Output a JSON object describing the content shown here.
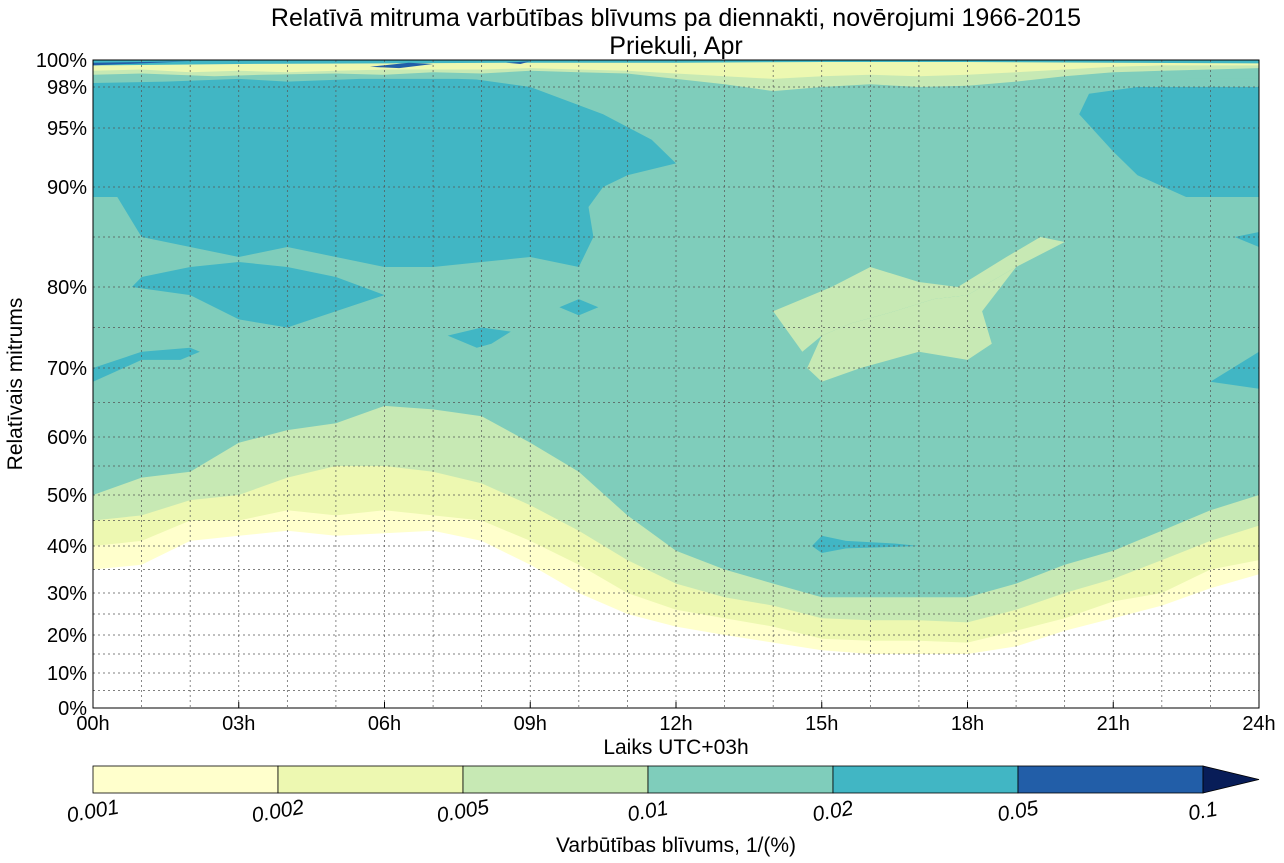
{
  "chart_data": {
    "type": "heatmap",
    "title": "Relatīvā mitruma varbūtības blīvums pa diennakti, novērojumi 1966-2015",
    "subtitle": "Priekuli, Apr",
    "xlabel": "Laiks UTC+03h",
    "ylabel": "Relatīvais mitrums",
    "x_ticks": [
      "00h",
      "03h",
      "06h",
      "09h",
      "12h",
      "15h",
      "18h",
      "21h",
      "24h"
    ],
    "x_range_hours": [
      0,
      24
    ],
    "y_ticks": [
      "0%",
      "10%",
      "20%",
      "30%",
      "40%",
      "50%",
      "60%",
      "70%",
      "80%",
      "90%",
      "95%",
      "98%",
      "100%"
    ],
    "y_range": [
      0,
      100
    ],
    "grid": true,
    "colorbar": {
      "label": "Varbūtības blīvums, 1/(%)",
      "levels": [
        "0.001",
        "0.002",
        "0.005",
        "0.01",
        "0.02",
        "0.05",
        "0.1"
      ],
      "colors": [
        "#ffffcc",
        "#edf8b1",
        "#c7e9b4",
        "#7fcdbb",
        "#41b6c4",
        "#225ea8",
        "#081d58"
      ],
      "extend": "max",
      "placement": "bottom"
    },
    "contours": [
      {
        "level": "0.001",
        "color": "#ffffcc",
        "lower_boundary": [
          [
            0,
            35
          ],
          [
            1,
            36
          ],
          [
            2,
            41
          ],
          [
            3,
            42
          ],
          [
            4,
            43
          ],
          [
            5,
            42
          ],
          [
            6,
            42.5
          ],
          [
            7,
            43
          ],
          [
            8,
            41
          ],
          [
            9,
            36
          ],
          [
            10,
            30
          ],
          [
            11,
            25
          ],
          [
            12,
            22
          ],
          [
            13,
            20
          ],
          [
            14,
            18
          ],
          [
            15,
            16
          ],
          [
            16,
            15
          ],
          [
            17,
            15
          ],
          [
            18,
            15
          ],
          [
            19,
            17
          ],
          [
            20,
            21
          ],
          [
            21,
            24
          ],
          [
            22,
            27
          ],
          [
            23,
            31
          ],
          [
            24,
            34
          ]
        ],
        "upper_boundary": [
          [
            0,
            40
          ],
          [
            1,
            41
          ],
          [
            2,
            45
          ],
          [
            3,
            45
          ],
          [
            4,
            47
          ],
          [
            5,
            46
          ],
          [
            6,
            47
          ],
          [
            7,
            46
          ],
          [
            8,
            45
          ],
          [
            9,
            41
          ],
          [
            10,
            36
          ],
          [
            11,
            30
          ],
          [
            12,
            26
          ],
          [
            13,
            24
          ],
          [
            14,
            22
          ],
          [
            15,
            19
          ],
          [
            16,
            18.5
          ],
          [
            17,
            18.5
          ],
          [
            18,
            18
          ],
          [
            19,
            21
          ],
          [
            20,
            24
          ],
          [
            21,
            28
          ],
          [
            22,
            30
          ],
          [
            23,
            35
          ],
          [
            24,
            37
          ]
        ]
      },
      {
        "level": "0.002",
        "color": "#edf8b1",
        "upper_boundary": [
          [
            0,
            45
          ],
          [
            1,
            46
          ],
          [
            2,
            49
          ],
          [
            3,
            50
          ],
          [
            4,
            53
          ],
          [
            5,
            55
          ],
          [
            6,
            55
          ],
          [
            7,
            54
          ],
          [
            8,
            52
          ],
          [
            9,
            48
          ],
          [
            10,
            43
          ],
          [
            11,
            37
          ],
          [
            12,
            32
          ],
          [
            13,
            29
          ],
          [
            14,
            27
          ],
          [
            15,
            24
          ],
          [
            16,
            23.5
          ],
          [
            17,
            23.5
          ],
          [
            18,
            23
          ],
          [
            19,
            26
          ],
          [
            20,
            30
          ],
          [
            21,
            33
          ],
          [
            22,
            37
          ],
          [
            23,
            41
          ],
          [
            24,
            44
          ]
        ]
      },
      {
        "level": "0.005",
        "color": "#c7e9b4",
        "upper_boundary": [
          [
            0,
            50
          ],
          [
            1,
            53
          ],
          [
            2,
            54
          ],
          [
            3,
            59
          ],
          [
            4,
            61
          ],
          [
            5,
            62
          ],
          [
            6,
            64.5
          ],
          [
            7,
            64
          ],
          [
            8,
            63
          ],
          [
            9,
            59
          ],
          [
            10,
            54
          ],
          [
            11,
            46
          ],
          [
            12,
            39
          ],
          [
            13,
            35
          ],
          [
            14,
            32
          ],
          [
            15,
            29
          ],
          [
            16,
            29
          ],
          [
            17,
            29
          ],
          [
            18,
            29
          ],
          [
            19,
            32
          ],
          [
            20,
            36
          ],
          [
            21,
            39
          ],
          [
            22,
            43
          ],
          [
            23,
            47
          ],
          [
            24,
            50
          ]
        ],
        "islands_hours_percent": [
          [
            [
              14.0,
              77
            ],
            [
              15.2,
              80
            ],
            [
              16.0,
              82
            ],
            [
              17.0,
              80.5
            ],
            [
              17.8,
              80
            ],
            [
              18.8,
              83
            ],
            [
              19.5,
              85
            ],
            [
              20.0,
              84.5
            ],
            [
              19.0,
              82
            ],
            [
              18.0,
              79
            ],
            [
              17.3,
              78.5
            ],
            [
              16.5,
              77
            ],
            [
              15.6,
              75.5
            ],
            [
              15.0,
              74
            ],
            [
              14.6,
              72
            ]
          ],
          [
            [
              15.0,
              74
            ],
            [
              15.6,
              75.5
            ],
            [
              16.5,
              77
            ],
            [
              17.3,
              78.5
            ],
            [
              18.0,
              79
            ],
            [
              19.0,
              82
            ],
            [
              18.3,
              77
            ],
            [
              18.5,
              73
            ],
            [
              18.0,
              71
            ],
            [
              17.0,
              72
            ],
            [
              15.8,
              70
            ],
            [
              15.0,
              68
            ],
            [
              14.7,
              70
            ]
          ]
        ]
      },
      {
        "level": "0.01",
        "color": "#7fcdbb",
        "description_range": "fills between 0.005 boundary and about 90%"
      },
      {
        "level": "0.02",
        "color": "#41b6c4",
        "region_hours_percent": [
          [
            0,
            99
          ],
          [
            0,
            89
          ],
          [
            0.5,
            89
          ],
          [
            1,
            85
          ],
          [
            2,
            84
          ],
          [
            3,
            83
          ],
          [
            4,
            84
          ],
          [
            5,
            83
          ],
          [
            6,
            82
          ],
          [
            7,
            82
          ],
          [
            8,
            82.5
          ],
          [
            9,
            83
          ],
          [
            10,
            82
          ],
          [
            10.3,
            85
          ],
          [
            10.2,
            88
          ],
          [
            10.5,
            90
          ],
          [
            11,
            91
          ],
          [
            12,
            92
          ],
          [
            11.5,
            94
          ],
          [
            10.5,
            96
          ],
          [
            9,
            98
          ],
          [
            7,
            99
          ],
          [
            4,
            99.5
          ],
          [
            2,
            99.5
          ],
          [
            0,
            99
          ]
        ],
        "islands_hours_percent": [
          [
            [
              0.8,
              80
            ],
            [
              2.0,
              79
            ],
            [
              3.0,
              76
            ],
            [
              4.0,
              75
            ],
            [
              5.0,
              77
            ],
            [
              6.0,
              79
            ],
            [
              5.0,
              81
            ],
            [
              4.0,
              82
            ],
            [
              3.0,
              82.5
            ],
            [
              2.0,
              82
            ],
            [
              1.0,
              81
            ]
          ],
          [
            [
              0,
              70
            ],
            [
              1.0,
              72
            ],
            [
              2.0,
              72.5
            ],
            [
              2.2,
              72
            ],
            [
              1.8,
              71
            ],
            [
              1.0,
              71
            ],
            [
              0,
              68
            ]
          ],
          [
            [
              7.3,
              74
            ],
            [
              8.0,
              75
            ],
            [
              8.6,
              74.5
            ],
            [
              8.2,
              73
            ],
            [
              7.9,
              72.5
            ]
          ],
          [
            [
              9.6,
              77.5
            ],
            [
              10.0,
              78.5
            ],
            [
              10.4,
              77.5
            ],
            [
              10.0,
              76.5
            ]
          ],
          [
            [
              20.3,
              96
            ],
            [
              20.5,
              97.5
            ],
            [
              21.5,
              98
            ],
            [
              24,
              98
            ],
            [
              24,
              89
            ],
            [
              22.5,
              89
            ],
            [
              21.5,
              91
            ],
            [
              21.0,
              93
            ]
          ],
          [
            [
              23.0,
              68
            ],
            [
              24.0,
              72
            ],
            [
              24,
              67
            ]
          ],
          [
            [
              23.5,
              85
            ],
            [
              24,
              85.5
            ],
            [
              24,
              84
            ]
          ],
          [
            [
              14.8,
              40
            ],
            [
              15.0,
              42
            ],
            [
              15.5,
              41
            ],
            [
              16.5,
              40.5
            ],
            [
              17.0,
              40
            ],
            [
              15.5,
              39.5
            ],
            [
              15.0,
              38.5
            ]
          ]
        ]
      },
      {
        "level": "0.05",
        "color": "#225ea8",
        "islands_hours_percent": [
          [
            [
              5.7,
              99.5
            ],
            [
              6.5,
              99.8
            ],
            [
              7.0,
              99.7
            ],
            [
              6.3,
              99.4
            ]
          ],
          [
            [
              0,
              99.8
            ],
            [
              2,
              99.9
            ],
            [
              0,
              99.6
            ]
          ],
          [
            [
              8.5,
              99.8
            ],
            [
              9.0,
              99.9
            ],
            [
              8.8,
              99.7
            ]
          ]
        ]
      },
      {
        "level": "0.01",
        "color": "#7fcdbb",
        "near_100_band_hours_percent": [
          [
            0,
            98.3
          ],
          [
            1.5,
            98.4
          ],
          [
            3,
            98.6
          ],
          [
            4,
            98.4
          ],
          [
            5.5,
            98.6
          ],
          [
            7.5,
            98.6
          ],
          [
            8.5,
            98.5
          ],
          [
            9.5,
            98.2
          ],
          [
            10.5,
            98.8
          ],
          [
            12,
            98.6
          ],
          [
            14,
            98.3
          ],
          [
            15,
            98.6
          ],
          [
            17,
            98.2
          ],
          [
            19,
            98.6
          ],
          [
            21,
            98.2
          ],
          [
            22.5,
            98.6
          ],
          [
            24,
            98.6
          ]
        ]
      },
      {
        "level": "0.005",
        "color": "#c7e9b4",
        "near_100_band_hours_percent": [
          [
            0,
            98.9
          ],
          [
            1,
            99.0
          ],
          [
            2.5,
            98.8
          ],
          [
            3.5,
            98.9
          ],
          [
            5,
            99.0
          ],
          [
            6,
            98.9
          ],
          [
            7,
            99.1
          ],
          [
            8,
            99.0
          ],
          [
            9,
            99.2
          ],
          [
            10,
            99.1
          ],
          [
            11,
            99.0
          ],
          [
            12,
            98.6
          ],
          [
            13,
            98.2
          ],
          [
            14,
            97.7
          ],
          [
            15,
            98.0
          ],
          [
            16,
            98.2
          ],
          [
            17,
            98.0
          ],
          [
            18,
            98.1
          ],
          [
            19,
            98.4
          ],
          [
            20,
            98.8
          ],
          [
            21,
            99.1
          ],
          [
            22,
            99.2
          ],
          [
            23,
            99.3
          ],
          [
            24,
            99.4
          ]
        ]
      },
      {
        "level": "0.002",
        "color": "#edf8b1",
        "near_100_band_hours_percent": [
          [
            0,
            99.2
          ],
          [
            1,
            99.3
          ],
          [
            2,
            99.1
          ],
          [
            3,
            99.2
          ],
          [
            4,
            99.1
          ],
          [
            5,
            99.2
          ],
          [
            6,
            99.3
          ],
          [
            7,
            99.3
          ],
          [
            8,
            99.3
          ],
          [
            9,
            99.4
          ],
          [
            10,
            99.3
          ],
          [
            11,
            99.2
          ],
          [
            12,
            99.0
          ],
          [
            13,
            98.8
          ],
          [
            14,
            98.6
          ],
          [
            15,
            98.8
          ],
          [
            16,
            98.9
          ],
          [
            17,
            98.8
          ],
          [
            18,
            98.9
          ],
          [
            19,
            99.1
          ],
          [
            20,
            99.3
          ],
          [
            21,
            99.5
          ],
          [
            22,
            99.6
          ],
          [
            23,
            99.6
          ],
          [
            24,
            99.6
          ]
        ]
      }
    ]
  }
}
